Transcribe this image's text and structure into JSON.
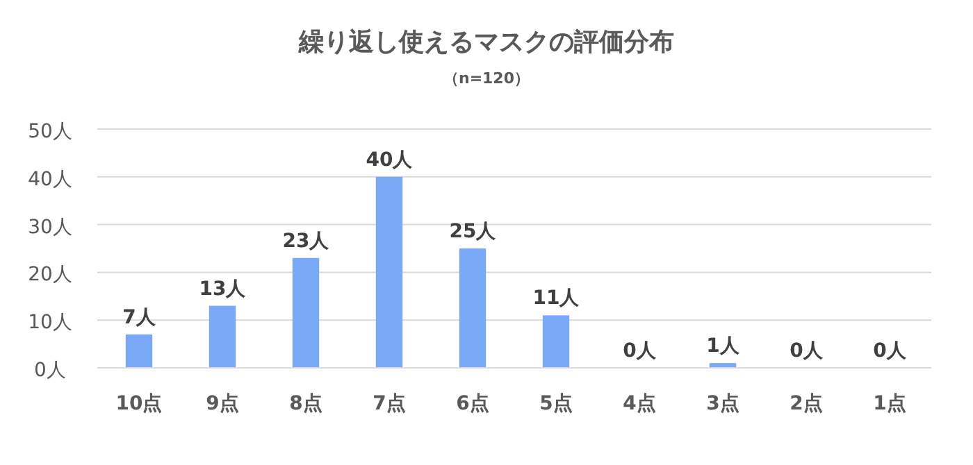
{
  "chart_data": {
    "type": "bar",
    "title": "繰り返し使えるマスクの評価分布",
    "subtitle": "（n=120）",
    "categories": [
      "10点",
      "9点",
      "8点",
      "7点",
      "6点",
      "5点",
      "4点",
      "3点",
      "2点",
      "1点"
    ],
    "values": [
      7,
      13,
      23,
      40,
      25,
      11,
      0,
      1,
      0,
      0
    ],
    "value_labels": [
      "7人",
      "13人",
      "23人",
      "40人",
      "25人",
      "11人",
      "0人",
      "1人",
      "0人",
      "0人"
    ],
    "color": "#7aa9f7",
    "ylim": [
      0,
      50
    ],
    "yticks": [
      {
        "value": 0,
        "label": "0人"
      },
      {
        "value": 10,
        "label": "10人"
      },
      {
        "value": 20,
        "label": "20人"
      },
      {
        "value": 30,
        "label": "30人"
      },
      {
        "value": 40,
        "label": "40人"
      },
      {
        "value": 50,
        "label": "50人"
      }
    ],
    "grid": "y"
  }
}
